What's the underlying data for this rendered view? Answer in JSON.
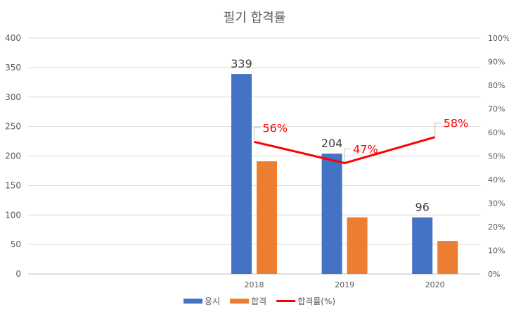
{
  "chart_data": {
    "type": "bar+line",
    "title": "필기 합격률",
    "categories": [
      "",
      "",
      "2018",
      "2019",
      "2020"
    ],
    "series": [
      {
        "name": "응시",
        "type": "bar",
        "axis": "left",
        "color": "#4472C4",
        "values": [
          null,
          null,
          339,
          204,
          96
        ],
        "labels": [
          "",
          "",
          "339",
          "204",
          "96"
        ]
      },
      {
        "name": "합격",
        "type": "bar",
        "axis": "left",
        "color": "#ED7D31",
        "values": [
          null,
          null,
          191,
          96,
          56
        ]
      },
      {
        "name": "합격률(%)",
        "type": "line",
        "axis": "right",
        "color": "#FF0000",
        "values": [
          null,
          null,
          0.56,
          0.47,
          0.58
        ],
        "labels": [
          "",
          "",
          "56%",
          "47%",
          "58%"
        ]
      }
    ],
    "ylim_left": [
      0,
      400
    ],
    "yticks_left": [
      "0",
      "50",
      "100",
      "150",
      "200",
      "250",
      "300",
      "350",
      "400"
    ],
    "ylim_right": [
      0,
      1
    ],
    "yticks_right": [
      "0%",
      "10%",
      "20%",
      "30%",
      "40%",
      "50%",
      "60%",
      "70%",
      "80%",
      "90%",
      "100%"
    ],
    "grid": true,
    "legend_position": "bottom"
  }
}
